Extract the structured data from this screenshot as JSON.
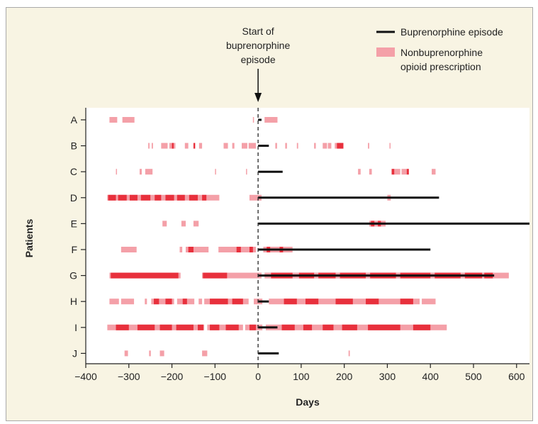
{
  "chart_data": {
    "type": "gantt",
    "xlabel": "Days",
    "ylabel": "Patients",
    "xlim": [
      -400,
      630
    ],
    "xticks": [
      "−400",
      "−300",
      "−200",
      "−100",
      "0",
      "100",
      "200",
      "300",
      "400",
      "500",
      "600"
    ],
    "xtick_values": [
      -400,
      -300,
      -200,
      -100,
      0,
      100,
      200,
      300,
      400,
      500,
      600
    ],
    "reference_line": {
      "x": 0,
      "style": "dashed"
    },
    "annotation": {
      "lines": [
        "Start of",
        "buprenorphine",
        "episode"
      ],
      "x": 0
    },
    "legend": {
      "placement": "top-right",
      "items": [
        {
          "kind": "line",
          "lines": [
            "Buprenorphine episode"
          ],
          "color": "#111111"
        },
        {
          "kind": "patch",
          "lines": [
            "Nonbuprenorphine",
            "opioid prescription"
          ],
          "color": "#f4a0a8"
        }
      ]
    },
    "colors": {
      "light": "#f4a0a8",
      "dark": "#e8303c",
      "bup": "#111111",
      "plot_bg": "#ffffff",
      "panel_bg": "#f8f4e3"
    },
    "patients": [
      {
        "id": "A",
        "bup": [
          0,
          8
        ],
        "light": [
          [
            -345,
            -327
          ],
          [
            -315,
            -287
          ],
          [
            -12,
            -10
          ],
          [
            15,
            45
          ]
        ],
        "dark": []
      },
      {
        "id": "B",
        "bup": [
          0,
          25
        ],
        "light": [
          [
            -255,
            -252
          ],
          [
            -247,
            -244
          ],
          [
            -225,
            -210
          ],
          [
            -206,
            -192
          ],
          [
            -170,
            -162
          ],
          [
            -137,
            -130
          ],
          [
            -80,
            -70
          ],
          [
            -60,
            -55
          ],
          [
            -38,
            -25
          ],
          [
            -22,
            -5
          ],
          [
            40,
            44
          ],
          [
            63,
            67
          ],
          [
            90,
            93
          ],
          [
            130,
            134
          ],
          [
            150,
            160
          ],
          [
            162,
            170
          ],
          [
            178,
            198
          ],
          [
            255,
            258
          ],
          [
            305,
            307
          ]
        ],
        "dark": [
          [
            -200,
            -196
          ],
          [
            -150,
            -146
          ],
          [
            183,
            198
          ]
        ]
      },
      {
        "id": "C",
        "bup": [
          0,
          57
        ],
        "light": [
          [
            -330,
            -328
          ],
          [
            -275,
            -270
          ],
          [
            -262,
            -245
          ],
          [
            -100,
            -98
          ],
          [
            -28,
            -26
          ],
          [
            232,
            238
          ],
          [
            258,
            264
          ],
          [
            315,
            330
          ],
          [
            333,
            345
          ],
          [
            403,
            412
          ]
        ],
        "dark": [
          [
            310,
            316
          ],
          [
            345,
            350
          ]
        ]
      },
      {
        "id": "D",
        "bup": [
          0,
          420
        ],
        "light": [
          [
            -350,
            -90
          ],
          [
            -20,
            8
          ],
          [
            300,
            308
          ]
        ],
        "dark": [
          [
            -348,
            -330
          ],
          [
            -325,
            -305
          ],
          [
            -298,
            -280
          ],
          [
            -272,
            -250
          ],
          [
            -240,
            -225
          ],
          [
            -215,
            -195
          ],
          [
            -188,
            -170
          ],
          [
            -160,
            -140
          ],
          [
            -130,
            -120
          ]
        ]
      },
      {
        "id": "E",
        "bup": [
          0,
          630
        ],
        "light": [
          [
            -222,
            -212
          ],
          [
            -178,
            -168
          ],
          [
            -150,
            -138
          ],
          [
            258,
            296
          ]
        ],
        "dark": [
          [
            262,
            270
          ],
          [
            278,
            285
          ]
        ]
      },
      {
        "id": "F",
        "bup": [
          0,
          400
        ],
        "light": [
          [
            -318,
            -282
          ],
          [
            -182,
            -176
          ],
          [
            -168,
            -115
          ],
          [
            -92,
            -5
          ],
          [
            12,
            80
          ]
        ],
        "dark": [
          [
            -162,
            -150
          ],
          [
            -50,
            -40
          ],
          [
            -20,
            -12
          ],
          [
            20,
            28
          ],
          [
            50,
            58
          ]
        ]
      },
      {
        "id": "G",
        "bup": [
          0,
          548
        ],
        "light": [
          [
            -345,
            -180
          ],
          [
            -130,
            8
          ],
          [
            15,
            582
          ]
        ],
        "dark": [
          [
            -342,
            -185
          ],
          [
            -128,
            -72
          ],
          [
            30,
            80
          ],
          [
            95,
            130
          ],
          [
            140,
            180
          ],
          [
            190,
            250
          ],
          [
            260,
            320
          ],
          [
            330,
            400
          ],
          [
            410,
            470
          ],
          [
            480,
            520
          ],
          [
            525,
            545
          ]
        ]
      },
      {
        "id": "H",
        "bup": [
          0,
          25
        ],
        "light": [
          [
            -345,
            -323
          ],
          [
            -318,
            -288
          ],
          [
            -263,
            -258
          ],
          [
            -248,
            -195
          ],
          [
            -188,
            -148
          ],
          [
            -138,
            -130
          ],
          [
            -125,
            -22
          ],
          [
            -10,
            10
          ],
          [
            25,
            375
          ],
          [
            380,
            412
          ]
        ],
        "dark": [
          [
            -242,
            -230
          ],
          [
            -215,
            -200
          ],
          [
            -175,
            -165
          ],
          [
            -112,
            -70
          ],
          [
            -60,
            -35
          ],
          [
            60,
            90
          ],
          [
            110,
            140
          ],
          [
            180,
            220
          ],
          [
            250,
            280
          ],
          [
            330,
            360
          ]
        ]
      },
      {
        "id": "I",
        "bup": [
          0,
          45
        ],
        "light": [
          [
            -350,
            -125
          ],
          [
            -118,
            -35
          ],
          [
            -30,
            10
          ],
          [
            18,
            438
          ]
        ],
        "dark": [
          [
            -330,
            -300
          ],
          [
            -280,
            -240
          ],
          [
            -228,
            -200
          ],
          [
            -190,
            -150
          ],
          [
            -140,
            -127
          ],
          [
            -112,
            -90
          ],
          [
            -75,
            -45
          ],
          [
            -20,
            -5
          ],
          [
            55,
            85
          ],
          [
            105,
            125
          ],
          [
            150,
            175
          ],
          [
            195,
            230
          ],
          [
            255,
            330
          ],
          [
            360,
            400
          ]
        ]
      },
      {
        "id": "J",
        "bup": [
          0,
          48
        ],
        "light": [
          [
            -310,
            -302
          ],
          [
            -253,
            -249
          ],
          [
            -228,
            -218
          ],
          [
            -130,
            -118
          ],
          [
            210,
            213
          ]
        ],
        "dark": []
      }
    ]
  }
}
